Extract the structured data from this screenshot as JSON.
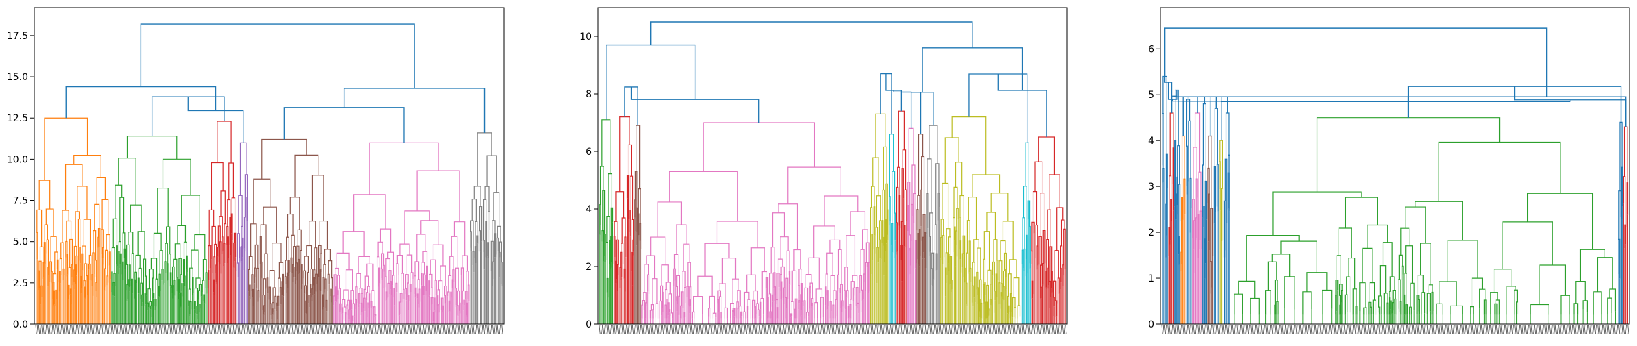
{
  "chart_data": [
    {
      "type": "dendrogram",
      "title": "",
      "xlabel": "",
      "ylabel": "",
      "ylim": [
        0,
        19.2
      ],
      "yticks": [
        "0.0",
        "2.5",
        "5.0",
        "7.5",
        "10.0",
        "12.5",
        "15.0",
        "17.5"
      ],
      "ytick_values": [
        0,
        2.5,
        5,
        7.5,
        10,
        12.5,
        15,
        17.5
      ],
      "leaf_labels_note": "dense overlapping leaf index labels",
      "clusters": [
        {
          "color": "#ff7f0e",
          "share": 0.16,
          "top": 12.5,
          "noise": 0.45
        },
        {
          "color": "#2ca02c",
          "share": 0.205,
          "top": 11.4,
          "noise": 0.4
        },
        {
          "color": "#d62728",
          "share": 0.06,
          "top": 12.3,
          "noise": 0.45
        },
        {
          "color": "#9467bd",
          "share": 0.025,
          "top": 11.0,
          "noise": 0.4
        },
        {
          "color": "#8c564b",
          "share": 0.18,
          "top": 11.2,
          "noise": 0.4
        },
        {
          "color": "#e377c2",
          "share": 0.29,
          "top": 11.0,
          "noise": 0.42
        },
        {
          "color": "#7f7f7f",
          "share": 0.07,
          "top": 11.6,
          "noise": 0.45
        }
      ],
      "merges": [
        {
          "a": [
            0,
            0
          ],
          "b": [
            1,
            3
          ],
          "h": 14.4,
          "tiers": [
            13.9,
            12.8
          ]
        },
        {
          "a": [
            4,
            5
          ],
          "b": [
            6,
            6
          ],
          "h": 14.3,
          "tiers": [
            13.3,
            12.8
          ]
        },
        {
          "a": [
            0,
            3
          ],
          "b": [
            4,
            6
          ],
          "h": 18.2
        }
      ]
    },
    {
      "type": "dendrogram",
      "title": "",
      "xlabel": "",
      "ylabel": "",
      "ylim": [
        0,
        11
      ],
      "yticks": [
        "0",
        "2",
        "4",
        "6",
        "8",
        "10"
      ],
      "ytick_values": [
        0,
        2,
        4,
        6,
        8,
        10
      ],
      "leaf_labels_note": "dense overlapping leaf index labels",
      "clusters": [
        {
          "color": "#2ca02c",
          "share": 0.03,
          "top": 7.1,
          "noise": 0.4
        },
        {
          "color": "#d62728",
          "share": 0.045,
          "top": 7.2,
          "noise": 0.45
        },
        {
          "color": "#8c564b",
          "share": 0.015,
          "top": 6.9,
          "noise": 0.4
        },
        {
          "color": "#e377c2",
          "share": 0.49,
          "top": 7.0,
          "noise": 0.45
        },
        {
          "color": "#bcbd22",
          "share": 0.04,
          "top": 7.3,
          "noise": 0.4
        },
        {
          "color": "#17becf",
          "share": 0.015,
          "top": 6.6,
          "noise": 0.4
        },
        {
          "color": "#d62728",
          "share": 0.025,
          "top": 7.4,
          "noise": 0.45
        },
        {
          "color": "#e377c2",
          "share": 0.02,
          "top": 6.8,
          "noise": 0.4
        },
        {
          "color": "#8c564b",
          "share": 0.02,
          "top": 6.6,
          "noise": 0.4
        },
        {
          "color": "#7f7f7f",
          "share": 0.03,
          "top": 6.9,
          "noise": 0.4
        },
        {
          "color": "#bcbd22",
          "share": 0.175,
          "top": 7.2,
          "noise": 0.45
        },
        {
          "color": "#17becf",
          "share": 0.02,
          "top": 6.3,
          "noise": 0.4
        },
        {
          "color": "#d62728",
          "share": 0.075,
          "top": 6.5,
          "noise": 0.45
        }
      ],
      "merges": [
        {
          "a": [
            0,
            0
          ],
          "b": [
            1,
            3
          ],
          "h": 9.7,
          "tiers": [
            8.3,
            7.7
          ]
        },
        {
          "a": [
            4,
            9
          ],
          "b": [
            10,
            12
          ],
          "h": 9.6,
          "tiers": [
            8.8,
            8.0
          ]
        },
        {
          "a": [
            0,
            3
          ],
          "b": [
            4,
            12
          ],
          "h": 10.5
        }
      ]
    },
    {
      "type": "dendrogram",
      "title": "",
      "xlabel": "",
      "ylabel": "",
      "ylim": [
        0,
        6.9
      ],
      "yticks": [
        "0",
        "1",
        "2",
        "3",
        "4",
        "5",
        "6"
      ],
      "ytick_values": [
        0,
        1,
        2,
        3,
        4,
        5,
        6
      ],
      "leaf_labels_note": "dense overlapping leaf index labels",
      "clusters": [
        {
          "color": "#1f77b4",
          "share": 0.012,
          "top": 5.4,
          "noise": 0.4
        },
        {
          "color": "#d62728",
          "share": 0.012,
          "top": 4.6,
          "noise": 0.45
        },
        {
          "color": "#1f77b4",
          "share": 0.012,
          "top": 5.1,
          "noise": 0.4
        },
        {
          "color": "#ff7f0e",
          "share": 0.01,
          "top": 4.1,
          "noise": 0.4
        },
        {
          "color": "#1f77b4",
          "share": 0.012,
          "top": 4.9,
          "noise": 0.4
        },
        {
          "color": "#e377c2",
          "share": 0.02,
          "top": 4.6,
          "noise": 0.45
        },
        {
          "color": "#1f77b4",
          "share": 0.01,
          "top": 4.8,
          "noise": 0.4
        },
        {
          "color": "#8c564b",
          "share": 0.012,
          "top": 4.1,
          "noise": 0.4
        },
        {
          "color": "#1f77b4",
          "share": 0.01,
          "top": 4.7,
          "noise": 0.4
        },
        {
          "color": "#bcbd22",
          "share": 0.01,
          "top": 4.0,
          "noise": 0.4
        },
        {
          "color": "#1f77b4",
          "share": 0.012,
          "top": 4.6,
          "noise": 0.4
        },
        {
          "color": "#2ca02c",
          "share": 0.75,
          "top": 4.5,
          "noise": 0.5
        },
        {
          "color": "#1f77b4",
          "share": 0.01,
          "top": 4.4,
          "noise": 0.4
        },
        {
          "color": "#d62728",
          "share": 0.01,
          "top": 4.3,
          "noise": 0.45
        }
      ],
      "merges": [
        {
          "a": [
            0,
            10
          ],
          "b": [
            11,
            13
          ],
          "h": 4.85,
          "tiers": [
            5.2,
            4.8
          ]
        },
        {
          "a": [
            0,
            0
          ],
          "b": [
            1,
            13
          ],
          "h": 6.45
        }
      ]
    }
  ]
}
